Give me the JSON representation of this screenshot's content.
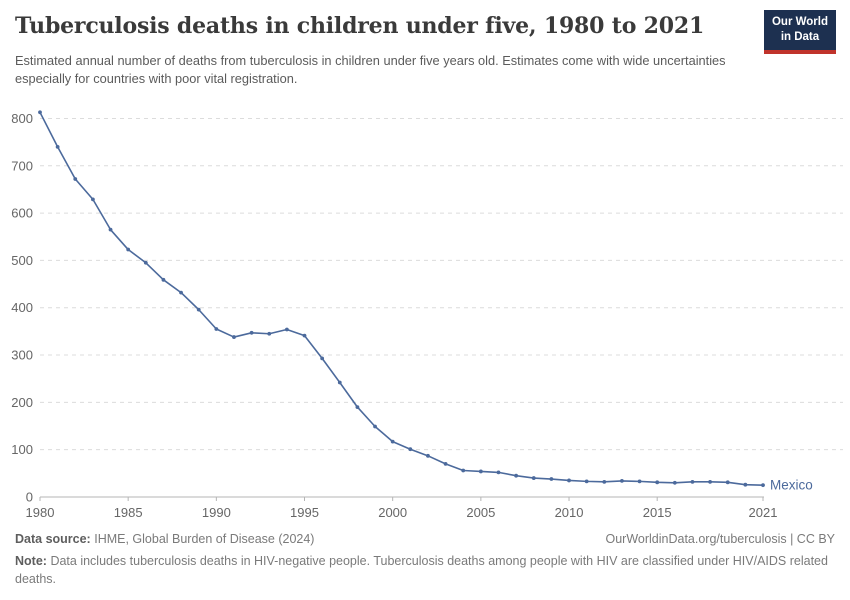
{
  "header": {
    "title": "Tuberculosis deaths in children under five, 1980 to 2021",
    "subtitle": "Estimated annual number of deaths from tuberculosis in children under five years old. Estimates come with wide uncertainties especially for countries with poor vital registration.",
    "logo": {
      "line1": "Our World",
      "line2": "in Data"
    }
  },
  "chart_data": {
    "type": "line",
    "title": "Tuberculosis deaths in children under five, 1980 to 2021",
    "xlabel": "",
    "ylabel": "",
    "xlim": [
      1980,
      2021
    ],
    "ylim": [
      0,
      820
    ],
    "x_ticks": [
      1980,
      1985,
      1990,
      1995,
      2000,
      2005,
      2010,
      2015,
      2021
    ],
    "y_ticks": [
      0,
      100,
      200,
      300,
      400,
      500,
      600,
      700,
      800
    ],
    "grid": "horizontal-dashed",
    "legend_position": "end-of-line",
    "end_label": "Mexico",
    "series": [
      {
        "name": "Mexico",
        "color": "#4C6A9C",
        "x": [
          1980,
          1981,
          1982,
          1983,
          1984,
          1985,
          1986,
          1987,
          1988,
          1989,
          1990,
          1991,
          1992,
          1993,
          1994,
          1995,
          1996,
          1997,
          1998,
          1999,
          2000,
          2001,
          2002,
          2003,
          2004,
          2005,
          2006,
          2007,
          2008,
          2009,
          2010,
          2011,
          2012,
          2013,
          2014,
          2015,
          2016,
          2017,
          2018,
          2019,
          2020,
          2021
        ],
        "values": [
          813,
          740,
          672,
          629,
          565,
          523,
          495,
          459,
          432,
          396,
          355,
          338,
          347,
          345,
          354,
          341,
          293,
          242,
          190,
          149,
          117,
          101,
          87,
          70,
          56,
          54,
          52,
          45,
          40,
          38,
          35,
          33,
          32,
          34,
          33,
          31,
          30,
          32,
          32,
          31,
          26,
          25
        ]
      }
    ]
  },
  "footer": {
    "datasource_label": "Data source:",
    "datasource_text": "IHME, Global Burden of Disease (2024)",
    "link_text": "OurWorldinData.org/tuberculosis | CC BY",
    "note_label": "Note:",
    "note_text": "Data includes tuberculosis deaths in HIV-negative people. Tuberculosis deaths among people with HIV are classified under HIV/AIDS related deaths."
  },
  "colors": {
    "series_blue": "#4C6A9C",
    "logo_navy": "#1d3050",
    "logo_red": "#c0332b",
    "gridline": "#dcdcdc",
    "axis": "#b5b5b5",
    "tick_text": "#666666",
    "title_text": "#3a3a3a",
    "subtitle_text": "#5b5b5b"
  }
}
